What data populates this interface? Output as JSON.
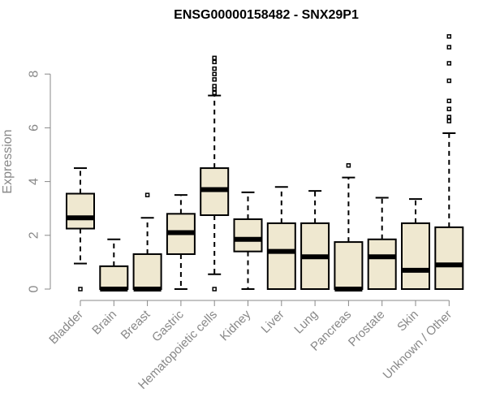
{
  "chart_data": {
    "type": "boxplot",
    "title": "ENSG00000158482 - SNX29P1",
    "xlabel": "",
    "ylabel": "Expression",
    "ylim": [
      0,
      9.6
    ],
    "yticks": [
      0,
      2,
      4,
      6,
      8
    ],
    "box_color": "#efe8d0",
    "categories": [
      "Bladder",
      "Brain",
      "Breast",
      "Gastric",
      "Hematopoietic cells",
      "Kidney",
      "Liver",
      "Lung",
      "Pancreas",
      "Prostate",
      "Skin",
      "Unknown / Other"
    ],
    "series": [
      {
        "name": "Bladder",
        "min": 0.95,
        "q1": 2.25,
        "median": 2.65,
        "q3": 3.55,
        "max": 4.5,
        "outliers": [
          0.0
        ]
      },
      {
        "name": "Brain",
        "min": 0.0,
        "q1": 0.0,
        "median": 0.0,
        "q3": 0.85,
        "max": 1.85,
        "outliers": []
      },
      {
        "name": "Breast",
        "min": 0.0,
        "q1": 0.0,
        "median": 0.0,
        "q3": 1.3,
        "max": 2.65,
        "outliers": [
          3.5
        ]
      },
      {
        "name": "Gastric",
        "min": 0.0,
        "q1": 1.3,
        "median": 2.1,
        "q3": 2.8,
        "max": 3.5,
        "outliers": []
      },
      {
        "name": "Hematopoietic cells",
        "min": 0.55,
        "q1": 2.75,
        "median": 3.7,
        "q3": 4.5,
        "max": 7.2,
        "outliers": [
          0.0,
          7.3,
          7.45,
          7.55,
          7.8,
          8.0,
          8.2,
          8.45,
          8.6
        ]
      },
      {
        "name": "Kidney",
        "min": 0.0,
        "q1": 1.4,
        "median": 1.85,
        "q3": 2.6,
        "max": 3.6,
        "outliers": []
      },
      {
        "name": "Liver",
        "min": 0.0,
        "q1": 0.0,
        "median": 1.4,
        "q3": 2.45,
        "max": 3.8,
        "outliers": []
      },
      {
        "name": "Lung",
        "min": 0.0,
        "q1": 0.0,
        "median": 1.2,
        "q3": 2.45,
        "max": 3.65,
        "outliers": []
      },
      {
        "name": "Pancreas",
        "min": 0.0,
        "q1": 0.0,
        "median": 0.0,
        "q3": 1.75,
        "max": 4.15,
        "outliers": [
          4.6
        ]
      },
      {
        "name": "Prostate",
        "min": 0.0,
        "q1": 0.0,
        "median": 1.2,
        "q3": 1.85,
        "max": 3.4,
        "outliers": []
      },
      {
        "name": "Skin",
        "min": 0.0,
        "q1": 0.0,
        "median": 0.7,
        "q3": 2.45,
        "max": 3.35,
        "outliers": []
      },
      {
        "name": "Unknown / Other",
        "min": 0.0,
        "q1": 0.0,
        "median": 0.9,
        "q3": 2.3,
        "max": 5.8,
        "outliers": [
          6.25,
          6.4,
          6.7,
          7.0,
          7.75,
          8.4,
          9.0,
          9.4
        ]
      }
    ]
  }
}
